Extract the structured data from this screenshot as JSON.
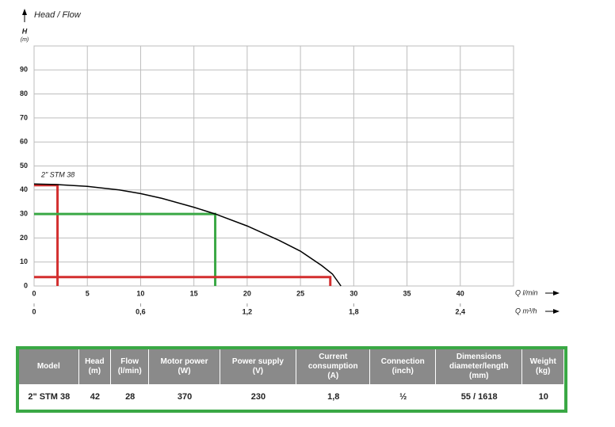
{
  "chart_data": {
    "type": "line",
    "title": "Head / Flow",
    "y_label": "H",
    "y_unit": "(m)",
    "x_label": "Q l/min",
    "x2_label": "Q m³/h",
    "xlim": [
      0,
      45
    ],
    "xticks": [
      0,
      5,
      10,
      15,
      20,
      25,
      30,
      35,
      40
    ],
    "x2lim": [
      0,
      2.7
    ],
    "x2ticks": [
      0,
      {
        "value": 0.6,
        "label": "0,6"
      },
      {
        "value": 1.2,
        "label": "1,2"
      },
      {
        "value": 1.8,
        "label": "1,8"
      },
      {
        "value": 2.4,
        "label": "2,4"
      }
    ],
    "ylim": [
      0,
      100
    ],
    "yticks": [
      0,
      10,
      20,
      30,
      40,
      50,
      60,
      70,
      80,
      90
    ],
    "grid": true,
    "series": [
      {
        "name": "2\" STM 38",
        "color": "#000000",
        "x": [
          0,
          2,
          5,
          8,
          10,
          12,
          15,
          17,
          20,
          23,
          25,
          27,
          28,
          28.8
        ],
        "values": [
          42.5,
          42.3,
          41.5,
          40,
          38.5,
          36.5,
          32.8,
          30,
          25,
          19,
          14.5,
          8.5,
          5,
          0
        ]
      }
    ],
    "operating_points": [
      {
        "color": "#d32f2f",
        "x": 2.2,
        "y": 42
      },
      {
        "color": "#3aa845",
        "x": 17,
        "y": 30
      },
      {
        "color": "#d32f2f",
        "x": 27.8,
        "y": 3.7
      }
    ]
  },
  "table": {
    "headers": [
      [
        "Model"
      ],
      [
        "Head",
        "(m)"
      ],
      [
        "Flow",
        "(l/min)"
      ],
      [
        "Motor power",
        "(W)"
      ],
      [
        "Power supply",
        "(V)"
      ],
      [
        "Current",
        "consumption",
        "(A)"
      ],
      [
        "Connection",
        "(inch)"
      ],
      [
        "Dimensions",
        "diameter/length",
        "(mm)"
      ],
      [
        "Weight",
        "(kg)"
      ]
    ],
    "rows": [
      [
        "2\" STM 38",
        "42",
        "28",
        "370",
        "230",
        "1,8",
        "½",
        "55 / 1618",
        "10"
      ]
    ]
  }
}
